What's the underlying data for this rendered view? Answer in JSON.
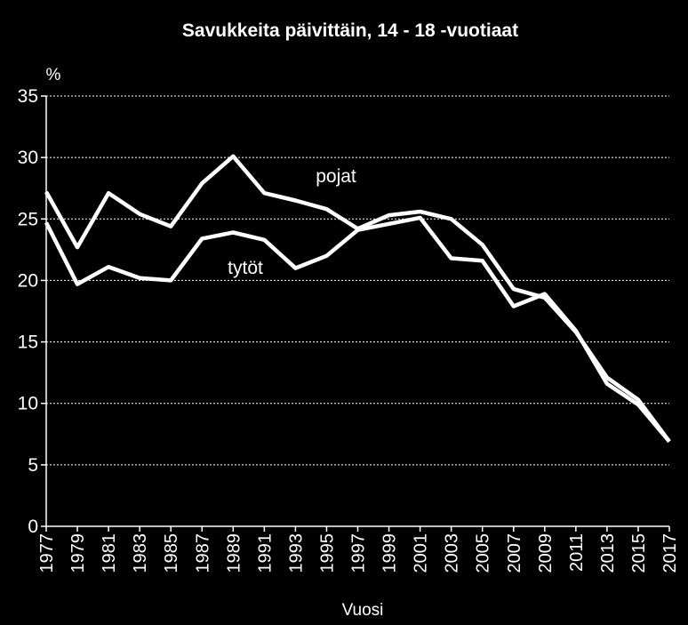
{
  "chart_data": {
    "type": "line",
    "title": "Savukkeita päivittäin, 14 - 18 -vuotiaat",
    "ylabel": "%",
    "xlabel": "Vuosi",
    "ylim": [
      0,
      35
    ],
    "yticks": [
      0,
      5,
      10,
      15,
      20,
      25,
      30,
      35
    ],
    "grid": true,
    "x": [
      "1977",
      "1979",
      "1981",
      "1983",
      "1985",
      "1987",
      "1989",
      "1991",
      "1993",
      "1995",
      "1997",
      "1999",
      "2001",
      "2003",
      "2005",
      "2007",
      "2009",
      "2011",
      "2013",
      "2015",
      "2017"
    ],
    "series": [
      {
        "name": "pojat",
        "values": [
          27.2,
          22.7,
          27.1,
          25.4,
          24.4,
          27.9,
          30.1,
          27.1,
          26.5,
          25.8,
          24.2,
          25.3,
          25.6,
          25.0,
          22.9,
          19.3,
          18.6,
          15.8,
          12.1,
          10.3,
          6.9
        ]
      },
      {
        "name": "tytöt",
        "values": [
          24.7,
          19.7,
          21.1,
          20.2,
          20.0,
          23.4,
          23.9,
          23.3,
          21.0,
          22.0,
          24.1,
          24.6,
          25.1,
          21.8,
          21.6,
          17.9,
          18.9,
          15.9,
          11.6,
          9.9,
          6.9
        ]
      }
    ],
    "colors": {
      "background": "#000000",
      "line": "#ffffff",
      "grid": "#ffffff"
    }
  }
}
